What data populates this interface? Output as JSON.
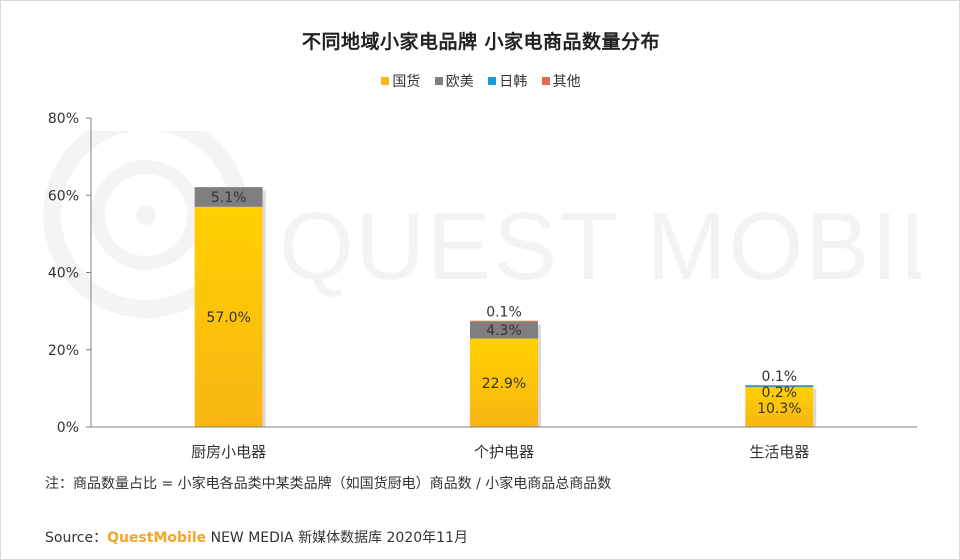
{
  "source": {
    "prefix": "Source：",
    "brand": "QuestMobile",
    "suffix": " NEW MEDIA 新媒体数据库 2020年11月"
  },
  "note": "注：商品数量占比 = 小家电各品类中某类品牌（如国货厨电）商品数 / 小家电商品总商品数",
  "watermark": "QUEST MOBILE",
  "colors": {
    "guohuo": "#f9b614",
    "oumei": "#7f7f7f",
    "rihan": "#1a9ad6",
    "qita": "#e36c4f",
    "axis": "#7f7f7f"
  },
  "chart_data": {
    "type": "bar",
    "stacked": true,
    "title": "不同地域小家电品牌 小家电商品数量分布",
    "categories": [
      "厨房小电器",
      "个护电器",
      "生活电器"
    ],
    "series": [
      {
        "name": "国货",
        "values": [
          57.0,
          22.9,
          10.3
        ],
        "labels": [
          "57.0%",
          "22.9%",
          "10.3%"
        ]
      },
      {
        "name": "欧美",
        "values": [
          5.1,
          4.3,
          0.2
        ],
        "labels": [
          "5.1%",
          "4.3%",
          "0.2%"
        ]
      },
      {
        "name": "日韩",
        "values": [
          0,
          0,
          0.1
        ],
        "labels": [
          "",
          "",
          "0.1%"
        ]
      },
      {
        "name": "其他",
        "values": [
          0,
          0.1,
          0
        ],
        "labels": [
          "",
          "0.1%",
          ""
        ]
      }
    ],
    "ylim": [
      0,
      80
    ],
    "yticks": [
      "0%",
      "20%",
      "40%",
      "60%",
      "80%"
    ],
    "xlabel": "",
    "ylabel": "",
    "legend_position": "top-center",
    "grid": false
  }
}
